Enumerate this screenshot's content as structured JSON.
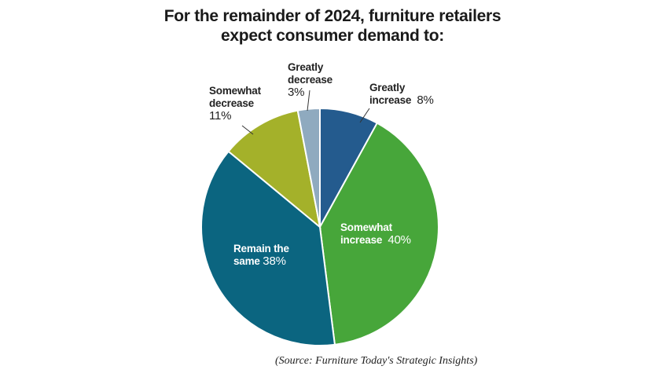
{
  "chart_data": {
    "type": "pie",
    "title": "For the remainder of 2024, furniture retailers expect consumer demand to:",
    "title_lines": [
      "For the remainder of 2024, furniture retailers",
      "expect consumer demand to:"
    ],
    "start": "top, clockwise",
    "slices": [
      {
        "label_lines": [
          "Greatly",
          "increase"
        ],
        "label": "Greatly increase",
        "value": 8,
        "pct_text": "8%",
        "color": "#245b8e"
      },
      {
        "label_lines": [
          "Somewhat",
          "increase"
        ],
        "label": "Somewhat increase",
        "value": 40,
        "pct_text": "40%",
        "color": "#47a63a"
      },
      {
        "label_lines": [
          "Remain the",
          "same"
        ],
        "label": "Remain the same",
        "value": 38,
        "pct_text": "38%",
        "color": "#0b6580"
      },
      {
        "label_lines": [
          "Somewhat",
          "decrease"
        ],
        "label": "Somewhat decrease",
        "value": 11,
        "pct_text": "11%",
        "color": "#a4b12a"
      },
      {
        "label_lines": [
          "Greatly",
          "decrease"
        ],
        "label": "Greatly decrease",
        "value": 3,
        "pct_text": "3%",
        "color": "#8faabf"
      }
    ],
    "source": "(Source: Furniture Today's Strategic Insights)"
  }
}
